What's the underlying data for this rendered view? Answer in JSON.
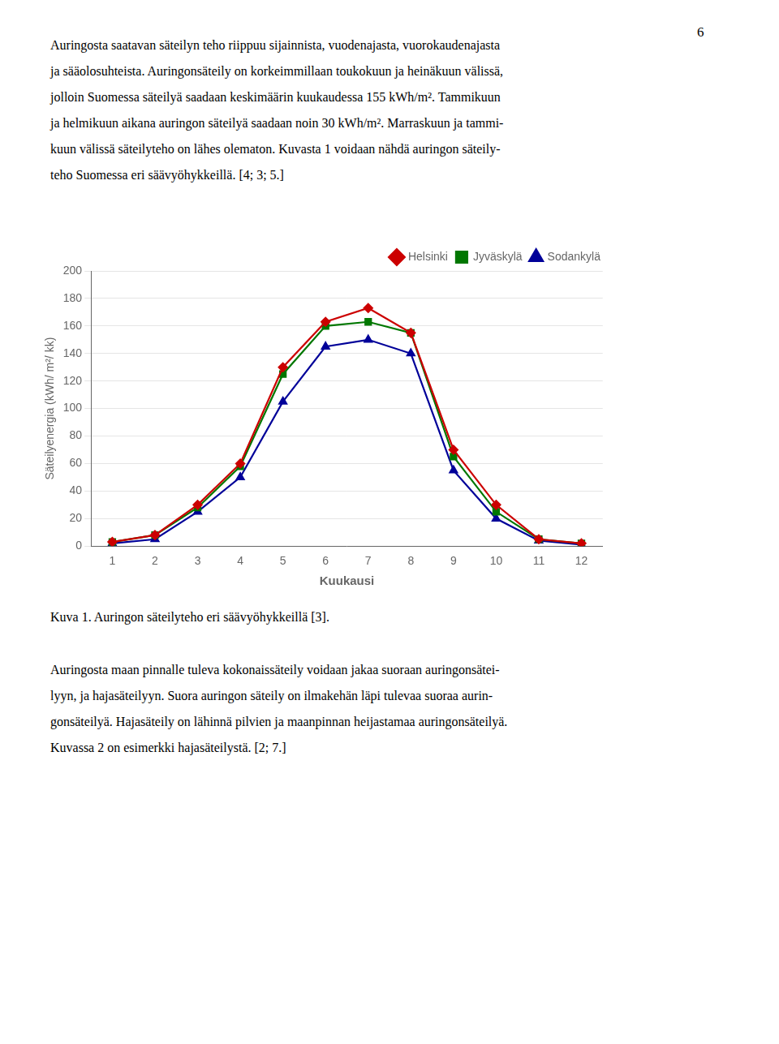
{
  "page_number": "6",
  "paragraph_1": [
    "Auringosta saatavan säteilyn teho riippuu sijainnista, vuodenajasta, vuorokaudenajasta",
    "ja sääolosuhteista. Auringonsäteily on korkeimmillaan toukokuun ja heinäkuun välissä,",
    "jolloin Suomessa säteilyä saadaan keskimäärin kuukaudessa 155 kWh/m². Tammikuun",
    "ja helmikuun aikana auringon säteilyä saadaan noin 30 kWh/m². Marraskuun ja tammi-",
    "kuun välissä säteilyteho on lähes olematon. Kuvasta 1 voidaan nähdä auringon säteily-",
    "teho Suomessa eri säävyöhykkeillä. [4; 3; 5.]"
  ],
  "caption": "Kuva 1. Auringon säteilyteho eri säävyöhykkeillä [3].",
  "paragraph_2": [
    "Auringosta maan pinnalle tuleva kokonaissäteily voidaan jakaa suoraan auringonsätei-",
    "lyyn, ja hajasäteilyyn. Suora auringon säteily on ilmakehän läpi tulevaa suoraa aurin-",
    "gonsäteilyä. Hajasäteily on lähinnä pilvien ja maanpinnan heijastamaa auringonsäteilyä.",
    "Kuvassa 2 on esimerkki hajasäteilystä. [2; 7.]"
  ],
  "chart_data": {
    "type": "line",
    "x": [
      1,
      2,
      3,
      4,
      5,
      6,
      7,
      8,
      9,
      10,
      11,
      12
    ],
    "series": [
      {
        "name": "Helsinki",
        "color": "#cc0000",
        "marker": "diamond",
        "values": [
          3,
          8,
          30,
          60,
          130,
          163,
          173,
          155,
          70,
          30,
          5,
          2
        ]
      },
      {
        "name": "Jyväskylä",
        "color": "#007700",
        "marker": "square",
        "values": [
          3,
          8,
          28,
          58,
          125,
          160,
          163,
          155,
          65,
          25,
          5,
          2
        ]
      },
      {
        "name": "Sodankylä",
        "color": "#000099",
        "marker": "triangle",
        "values": [
          2,
          5,
          25,
          50,
          105,
          145,
          150,
          140,
          55,
          20,
          4,
          1
        ]
      }
    ],
    "x_label": "Kuukausi",
    "y_label": "Säteilyenergia (kWh/ m²/ kk)",
    "xlim": [
      0.5,
      12.5
    ],
    "xticks": [
      1,
      2,
      3,
      4,
      5,
      6,
      7,
      8,
      9,
      10,
      11,
      12
    ],
    "ylim": [
      0,
      200
    ],
    "yticks": [
      0,
      20,
      40,
      60,
      80,
      100,
      120,
      140,
      160,
      180,
      200
    ],
    "grid": "y",
    "legend": "upper right"
  }
}
